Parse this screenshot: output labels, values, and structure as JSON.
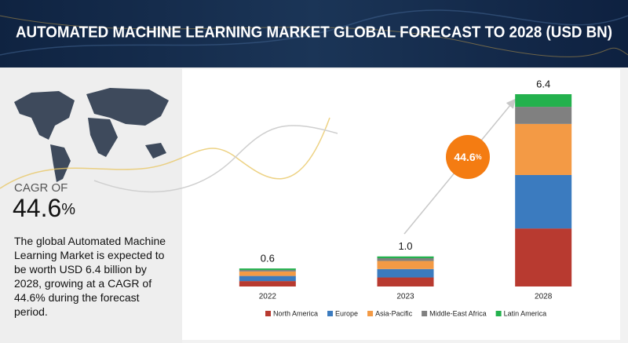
{
  "header": {
    "title": "AUTOMATED MACHINE LEARNING MARKET GLOBAL FORECAST TO 2028 (USD BN)"
  },
  "summary": {
    "cagr_label": "CAGR OF",
    "cagr_value": "44.6",
    "cagr_unit": "%",
    "description": "The global Automated Machine Learning Market is expected to be worth USD 6.4 billion by 2028, growing at a CAGR of 44.6% during the forecast period."
  },
  "chart_data": {
    "type": "stacked_bar",
    "categories": [
      "2022",
      "2023",
      "2028"
    ],
    "series": [
      {
        "name": "North America",
        "color": "#b83a30",
        "values": [
          0.18,
          0.3,
          1.93
        ]
      },
      {
        "name": "Europe",
        "color": "#3b7bbf",
        "values": [
          0.17,
          0.28,
          1.78
        ]
      },
      {
        "name": "Asia-Pacific",
        "color": "#f39a45",
        "values": [
          0.15,
          0.27,
          1.7
        ]
      },
      {
        "name": "Middle-East Africa",
        "color": "#808080",
        "values": [
          0.05,
          0.09,
          0.57
        ]
      },
      {
        "name": "Latin America",
        "color": "#23b14d",
        "values": [
          0.05,
          0.06,
          0.42
        ]
      }
    ],
    "totals": {
      "values": [
        0.6,
        1,
        6.4
      ],
      "value_labels": [
        "0.6",
        "1.0",
        "6.4"
      ]
    },
    "annotation": {
      "value": "44.6",
      "unit": "%"
    }
  }
}
